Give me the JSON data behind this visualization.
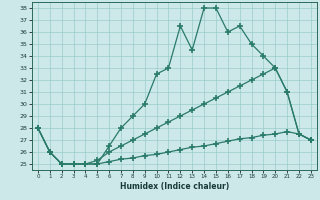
{
  "xlabel": "Humidex (Indice chaleur)",
  "bg_color": "#cce8e8",
  "grid_color": "#99cccc",
  "line_color": "#2a7a6a",
  "xlim": [
    -0.5,
    23.5
  ],
  "ylim": [
    24.5,
    38.5
  ],
  "xticks": [
    0,
    1,
    2,
    3,
    4,
    5,
    6,
    7,
    8,
    9,
    10,
    11,
    12,
    13,
    14,
    15,
    16,
    17,
    18,
    19,
    20,
    21,
    22,
    23
  ],
  "yticks": [
    25,
    26,
    27,
    28,
    29,
    30,
    31,
    32,
    33,
    34,
    35,
    36,
    37,
    38
  ],
  "curve1_x": [
    0,
    1,
    2,
    3,
    4,
    5,
    6,
    7,
    8,
    9,
    10,
    11,
    12,
    13,
    14,
    15,
    16,
    17,
    18,
    19,
    20,
    21,
    22,
    23
  ],
  "curve1_y": [
    28,
    26,
    25,
    25,
    25,
    25,
    26.5,
    28,
    29,
    30,
    32.5,
    33,
    36.5,
    34.5,
    38,
    38,
    36,
    36.5,
    35,
    34,
    33,
    31,
    27.5,
    27
  ],
  "curve2_x": [
    0,
    1,
    2,
    3,
    4,
    5,
    6,
    7,
    8,
    9,
    10,
    11,
    12,
    13,
    14,
    15,
    16,
    17,
    18,
    19,
    20,
    21,
    22,
    23
  ],
  "curve2_y": [
    28,
    26,
    25,
    25,
    25,
    25.3,
    26,
    26.5,
    27,
    27.5,
    28,
    28.5,
    29,
    29.5,
    30,
    30.5,
    31,
    31.5,
    32,
    32.5,
    33,
    31,
    27.5,
    27
  ],
  "curve3_x": [
    0,
    1,
    2,
    3,
    4,
    5,
    6,
    7,
    8,
    9,
    10,
    11,
    12,
    13,
    14,
    15,
    16,
    17,
    18,
    19,
    20,
    21,
    22,
    23
  ],
  "curve3_y": [
    28,
    26,
    25,
    25,
    25,
    25,
    25.2,
    25.4,
    25.5,
    25.7,
    25.8,
    26.0,
    26.2,
    26.4,
    26.5,
    26.7,
    26.9,
    27.1,
    27.2,
    27.4,
    27.5,
    27.7,
    27.5,
    27
  ]
}
